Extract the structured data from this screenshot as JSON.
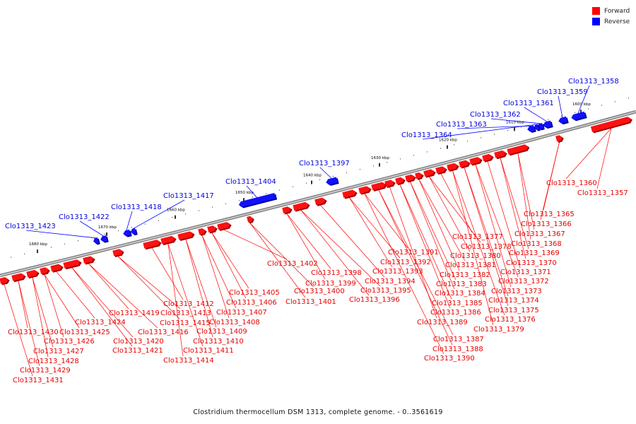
{
  "legend": {
    "forward": {
      "label": "Forward",
      "color": "#ff0000"
    },
    "reverse": {
      "label": "Reverse",
      "color": "#0000ff"
    }
  },
  "caption": "Clostridium thermocellum DSM 1313, complete genome. - 0..3561619",
  "ticks": [
    "1600 kbp",
    "1610 kbp",
    "1620 kbp",
    "1630 kbp",
    "1640 kbp",
    "1650 kbp",
    "1660 kbp",
    "1670 kbp",
    "1680 kbp"
  ],
  "reverse_genes": [
    "Clo1313_1358",
    "Clo1313_1359",
    "Clo1313_1361",
    "Clo1313_1362",
    "Clo1313_1363",
    "Clo1313_1364",
    "Clo1313_1397",
    "Clo1313_1404",
    "Clo1313_1417",
    "Clo1313_1418",
    "Clo1313_1422",
    "Clo1313_1423"
  ],
  "forward_genes": [
    "Clo1313_1357",
    "Clo1313_1360",
    "Clo1313_1365",
    "Clo1313_1366",
    "Clo1313_1367",
    "Clo1313_1368",
    "Clo1313_1369",
    "Clo1313_1370",
    "Clo1313_1371",
    "Clo1313_1372",
    "Clo1313_1373",
    "Clo1313_1374",
    "Clo1313_1375",
    "Clo1313_1376",
    "Clo1313_1379",
    "Clo1313_1377",
    "Clo1313_1378",
    "Clo1313_1380",
    "Clo1313_1381",
    "Clo1313_1382",
    "Clo1313_1383",
    "Clo1313_1384",
    "Clo1313_1385",
    "Clo1313_1386",
    "Clo1313_1389",
    "Clo1313_1387",
    "Clo1313_1388",
    "Clo1313_1390",
    "Clo1313_1391",
    "Clo1313_1392",
    "Clo1313_1393",
    "Clo1313_1394",
    "Clo1313_1395",
    "Clo1313_1396",
    "Clo1313_1398",
    "Clo1313_1399",
    "Clo1313_1400",
    "Clo1313_1401",
    "Clo1313_1402",
    "Clo1313_1405",
    "Clo1313_1406",
    "Clo1313_1407",
    "Clo1313_1408",
    "Clo1313_1409",
    "Clo1313_1410",
    "Clo1313_1411",
    "Clo1313_1414",
    "Clo1313_1412",
    "Clo1313_1413",
    "Clo1313_1415",
    "Clo1313_1416",
    "Clo1313_1419",
    "Clo1313_1420",
    "Clo1313_1421",
    "Clo1313_1424",
    "Clo1313_1425",
    "Clo1313_1426",
    "Clo1313_1427",
    "Clo1313_1428",
    "Clo1313_1429",
    "Clo1313_1430",
    "Clo1313_1431"
  ]
}
